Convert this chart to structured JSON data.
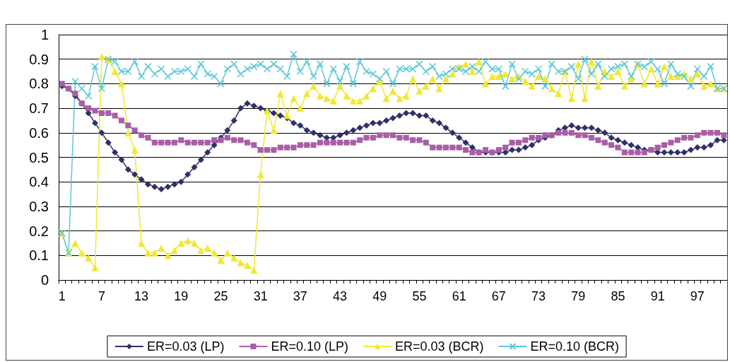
{
  "chart_data": {
    "type": "line",
    "categories": [
      "1",
      null,
      null,
      null,
      null,
      null,
      "7",
      null,
      null,
      null,
      null,
      null,
      "13",
      null,
      null,
      null,
      null,
      null,
      "19",
      null,
      null,
      null,
      null,
      null,
      "25",
      null,
      null,
      null,
      null,
      null,
      "31",
      null,
      null,
      null,
      null,
      null,
      "37",
      null,
      null,
      null,
      null,
      null,
      "43",
      null,
      null,
      null,
      null,
      null,
      "49",
      null,
      null,
      null,
      null,
      null,
      "55",
      null,
      null,
      null,
      null,
      null,
      "61",
      null,
      null,
      null,
      null,
      null,
      "67",
      null,
      null,
      null,
      null,
      null,
      "73",
      null,
      null,
      null,
      null,
      null,
      "79",
      null,
      null,
      null,
      null,
      null,
      "85",
      null,
      null,
      null,
      null,
      null,
      "91",
      null,
      null,
      null,
      null,
      null,
      "97",
      null,
      null,
      null,
      null
    ],
    "series": [
      {
        "name": "ER=0.03 (LP)",
        "color": "#2e3066",
        "marker": "diamond",
        "values": [
          0.79,
          0.78,
          0.75,
          0.72,
          0.68,
          0.64,
          0.6,
          0.56,
          0.52,
          0.49,
          0.45,
          0.43,
          0.41,
          0.39,
          0.38,
          0.37,
          0.38,
          0.39,
          0.4,
          0.43,
          0.46,
          0.49,
          0.52,
          0.55,
          0.58,
          0.61,
          0.65,
          0.7,
          0.72,
          0.71,
          0.7,
          0.69,
          0.68,
          0.67,
          0.66,
          0.64,
          0.63,
          0.61,
          0.6,
          0.59,
          0.58,
          0.58,
          0.59,
          0.6,
          0.61,
          0.62,
          0.63,
          0.64,
          0.64,
          0.65,
          0.66,
          0.67,
          0.68,
          0.68,
          0.67,
          0.67,
          0.65,
          0.64,
          0.62,
          0.6,
          0.58,
          0.56,
          0.54,
          0.52,
          0.52,
          0.52,
          0.52,
          0.52,
          0.53,
          0.53,
          0.54,
          0.55,
          0.57,
          0.58,
          0.59,
          0.61,
          0.62,
          0.63,
          0.62,
          0.62,
          0.62,
          0.61,
          0.6,
          0.58,
          0.57,
          0.56,
          0.55,
          0.54,
          0.53,
          0.53,
          0.52,
          0.52,
          0.52,
          0.52,
          0.52,
          0.53,
          0.54,
          0.54,
          0.55,
          0.57,
          0.57
        ]
      },
      {
        "name": "ER=0.10 (LP)",
        "color": "#a95ea6",
        "marker": "square",
        "values": [
          0.8,
          0.78,
          0.76,
          0.72,
          0.7,
          0.69,
          0.68,
          0.68,
          0.67,
          0.65,
          0.63,
          0.61,
          0.59,
          0.58,
          0.56,
          0.56,
          0.56,
          0.56,
          0.57,
          0.56,
          0.56,
          0.56,
          0.56,
          0.57,
          0.57,
          0.58,
          0.57,
          0.57,
          0.56,
          0.55,
          0.53,
          0.53,
          0.53,
          0.54,
          0.54,
          0.54,
          0.55,
          0.55,
          0.55,
          0.56,
          0.56,
          0.56,
          0.56,
          0.56,
          0.56,
          0.57,
          0.58,
          0.58,
          0.59,
          0.59,
          0.59,
          0.58,
          0.58,
          0.57,
          0.57,
          0.56,
          0.54,
          0.54,
          0.54,
          0.54,
          0.54,
          0.53,
          0.52,
          0.52,
          0.53,
          0.52,
          0.53,
          0.54,
          0.56,
          0.56,
          0.57,
          0.58,
          0.58,
          0.59,
          0.59,
          0.6,
          0.6,
          0.6,
          0.59,
          0.59,
          0.58,
          0.57,
          0.56,
          0.55,
          0.54,
          0.52,
          0.52,
          0.52,
          0.52,
          0.53,
          0.54,
          0.55,
          0.56,
          0.57,
          0.58,
          0.58,
          0.59,
          0.6,
          0.6,
          0.6,
          0.59
        ]
      },
      {
        "name": "ER=0.03 (BCR)",
        "color": "#f0e830",
        "marker": "triangle",
        "values": [
          0.19,
          0.11,
          0.15,
          0.11,
          0.09,
          0.05,
          0.91,
          0.9,
          0.85,
          0.8,
          0.6,
          0.53,
          0.15,
          0.11,
          0.11,
          0.13,
          0.1,
          0.12,
          0.15,
          0.16,
          0.15,
          0.12,
          0.13,
          0.11,
          0.08,
          0.11,
          0.09,
          0.07,
          0.06,
          0.04,
          0.43,
          0.69,
          0.61,
          0.76,
          0.67,
          0.74,
          0.7,
          0.76,
          0.79,
          0.75,
          0.74,
          0.73,
          0.79,
          0.75,
          0.73,
          0.73,
          0.75,
          0.78,
          0.81,
          0.74,
          0.77,
          0.74,
          0.75,
          0.82,
          0.77,
          0.79,
          0.82,
          0.78,
          0.82,
          0.84,
          0.87,
          0.88,
          0.85,
          0.89,
          0.8,
          0.83,
          0.83,
          0.84,
          0.82,
          0.83,
          0.81,
          0.79,
          0.83,
          0.82,
          0.78,
          0.76,
          0.85,
          0.74,
          0.88,
          0.74,
          0.89,
          0.79,
          0.85,
          0.83,
          0.85,
          0.79,
          0.82,
          0.88,
          0.8,
          0.86,
          0.8,
          0.87,
          0.83,
          0.83,
          0.84,
          0.82,
          0.84,
          0.79,
          0.8,
          0.78,
          0.78
        ]
      },
      {
        "name": "ER=0.10 (BCR)",
        "color": "#5bc8d8",
        "marker": "cross",
        "values": [
          0.19,
          0.11,
          0.81,
          0.78,
          0.75,
          0.87,
          0.78,
          0.9,
          0.89,
          0.85,
          0.85,
          0.89,
          0.83,
          0.87,
          0.84,
          0.86,
          0.83,
          0.85,
          0.85,
          0.86,
          0.83,
          0.88,
          0.84,
          0.83,
          0.8,
          0.86,
          0.88,
          0.84,
          0.86,
          0.87,
          0.88,
          0.86,
          0.88,
          0.86,
          0.83,
          0.92,
          0.85,
          0.89,
          0.83,
          0.88,
          0.8,
          0.86,
          0.81,
          0.87,
          0.8,
          0.89,
          0.85,
          0.84,
          0.82,
          0.85,
          0.8,
          0.86,
          0.86,
          0.86,
          0.88,
          0.85,
          0.87,
          0.83,
          0.84,
          0.86,
          0.86,
          0.85,
          0.87,
          0.85,
          0.89,
          0.86,
          0.86,
          0.79,
          0.88,
          0.82,
          0.85,
          0.84,
          0.86,
          0.79,
          0.88,
          0.85,
          0.85,
          0.87,
          0.82,
          0.9,
          0.84,
          0.88,
          0.83,
          0.86,
          0.87,
          0.88,
          0.83,
          0.88,
          0.87,
          0.89,
          0.86,
          0.8,
          0.88,
          0.84,
          0.83,
          0.79,
          0.86,
          0.83,
          0.87,
          0.78,
          0.78
        ]
      }
    ],
    "ylim": [
      0,
      1
    ],
    "yticks": [
      0,
      0.1,
      0.2,
      0.3,
      0.4,
      0.5,
      0.6,
      0.7,
      0.8,
      0.9,
      1
    ],
    "grid": "y",
    "legend": "bottom",
    "line_style": "solid"
  }
}
